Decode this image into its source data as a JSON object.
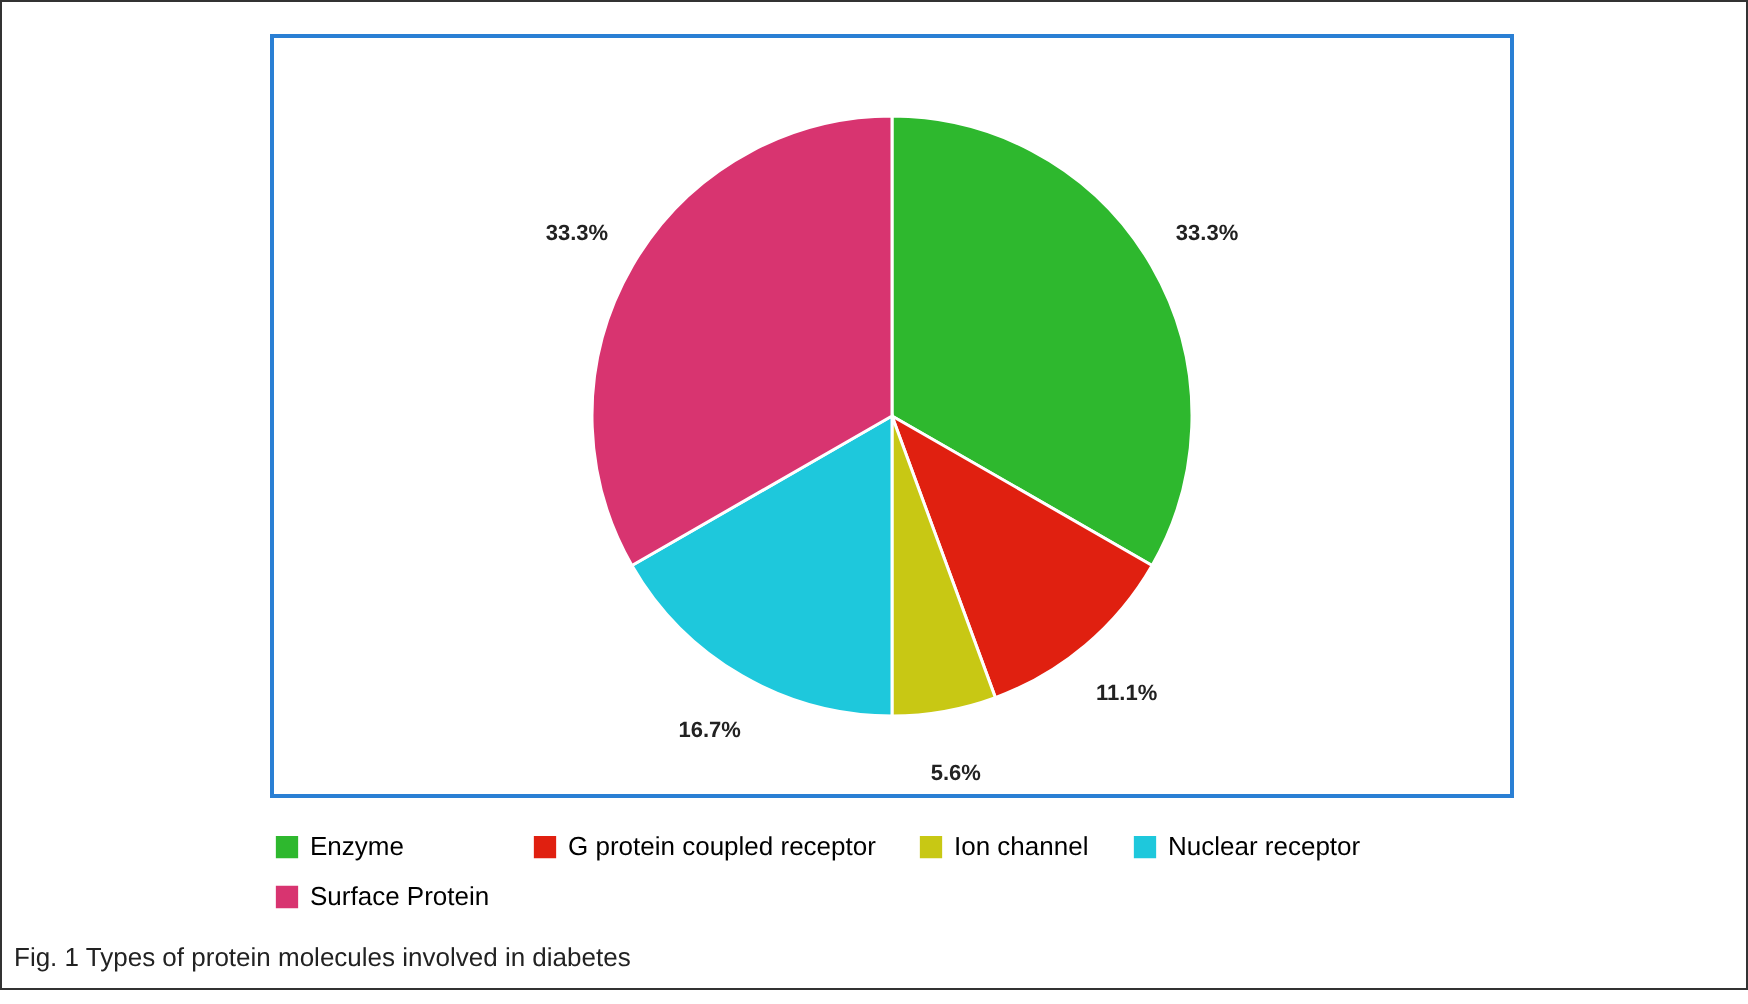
{
  "chart_data": {
    "type": "pie",
    "categories": [
      "Enzyme",
      "G protein coupled receptor",
      "Ion channel",
      "Nuclear receptor",
      "Surface Protein"
    ],
    "values": [
      33.3,
      11.1,
      5.6,
      16.7,
      33.3
    ],
    "value_labels": [
      "33.3%",
      "11.1%",
      "5.6%",
      "16.7%",
      "33.3%"
    ],
    "colors": [
      "#2eb82e",
      "#e02010",
      "#c8c814",
      "#1ec8dc",
      "#d83470"
    ],
    "legend": "bottom",
    "annotations": [
      "Fig. 1 Types of protein molecules involved in diabetes"
    ]
  }
}
